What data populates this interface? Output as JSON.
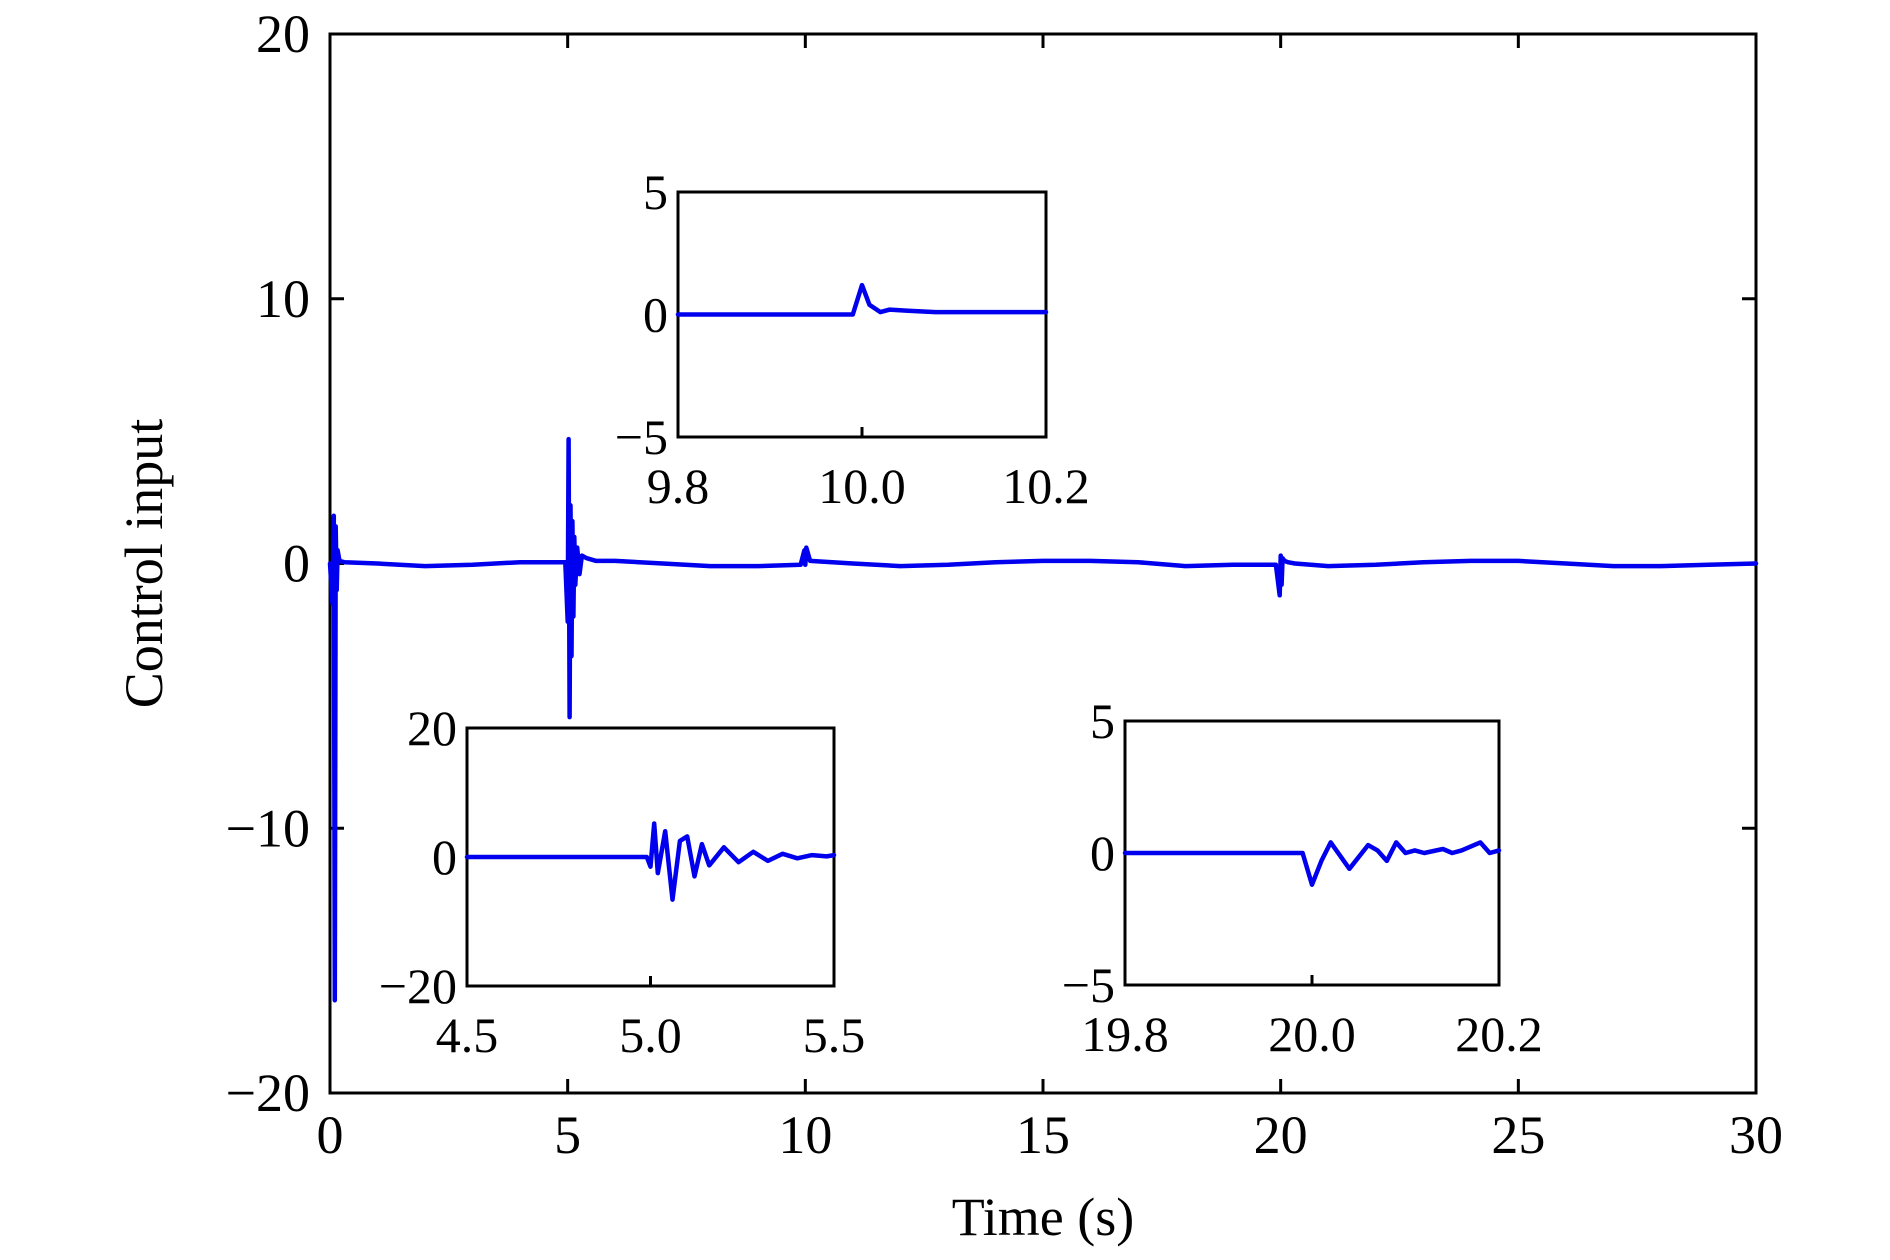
{
  "chart_data": {
    "type": "line",
    "xlabel": "Time (s)",
    "ylabel": "Control input",
    "xlim": [
      0,
      30
    ],
    "ylim": [
      -20,
      20
    ],
    "xticks": [
      "0",
      "5",
      "10",
      "15",
      "20",
      "25",
      "30"
    ],
    "yticks": [
      "−20",
      "−10",
      "0",
      "10",
      "20"
    ],
    "grid": true,
    "color": "#0000ee",
    "series": [
      {
        "x": [
          0,
          0.05,
          0.08,
          0.1,
          0.12,
          0.14,
          0.16,
          0.2,
          0.3,
          1.0,
          2.0,
          3.0,
          4.0,
          4.95,
          5.0,
          5.02,
          5.04,
          5.06,
          5.08,
          5.1,
          5.12,
          5.14,
          5.16,
          5.2,
          5.25,
          5.3,
          5.4,
          5.6,
          6.0,
          7.0,
          8.0,
          9.0,
          9.9,
          9.98,
          10.0,
          10.02,
          10.1,
          11.0,
          12.0,
          13.0,
          14.0,
          15.0,
          16.0,
          17.0,
          18.0,
          19.0,
          19.9,
          19.98,
          20.0,
          20.02,
          20.04,
          20.08,
          20.15,
          20.3,
          21.0,
          22.0,
          23.0,
          24.0,
          25.0,
          26.0,
          27.0,
          28.0,
          29.0,
          30.0
        ],
        "y": [
          0,
          -1.5,
          1.8,
          -16.5,
          1.4,
          -1.0,
          0.5,
          0.1,
          0.05,
          0.0,
          -0.1,
          -0.05,
          0.05,
          0.05,
          -2.2,
          4.7,
          -5.8,
          2.2,
          -3.5,
          1.6,
          -2.0,
          1.0,
          -0.8,
          0.6,
          -0.4,
          0.3,
          0.2,
          0.1,
          0.1,
          0.0,
          -0.1,
          -0.1,
          -0.05,
          0.5,
          -0.05,
          0.6,
          0.1,
          0.0,
          -0.1,
          -0.05,
          0.05,
          0.1,
          0.1,
          0.05,
          -0.1,
          -0.05,
          -0.05,
          -1.2,
          0.3,
          -0.8,
          0.2,
          0.1,
          0.05,
          0.0,
          -0.1,
          -0.05,
          0.05,
          0.1,
          0.1,
          0.0,
          -0.1,
          -0.1,
          -0.05,
          0.0
        ]
      }
    ],
    "insets": [
      {
        "xlim": [
          9.8,
          10.2
        ],
        "ylim": [
          -5,
          5
        ],
        "xticks": [
          "9.8",
          "10.0",
          "10.2"
        ],
        "yticks": [
          "−5",
          "0",
          "5"
        ],
        "x": [
          9.8,
          9.99,
          10.0,
          10.008,
          10.02,
          10.03,
          10.05,
          10.08,
          10.12,
          10.2
        ],
        "y": [
          0,
          0,
          1.2,
          0.4,
          0.1,
          0.2,
          0.15,
          0.1,
          0.1,
          0.1
        ]
      },
      {
        "xlim": [
          4.5,
          5.5
        ],
        "ylim": [
          -20,
          20
        ],
        "xticks": [
          "4.5",
          "5.0",
          "5.5"
        ],
        "yticks": [
          "−20",
          "0",
          "20"
        ],
        "x": [
          4.5,
          4.99,
          5.0,
          5.01,
          5.02,
          5.04,
          5.06,
          5.08,
          5.1,
          5.12,
          5.14,
          5.16,
          5.2,
          5.24,
          5.28,
          5.32,
          5.36,
          5.4,
          5.44,
          5.48,
          5.5
        ],
        "y": [
          0,
          0,
          -1.5,
          5.2,
          -2.5,
          4.0,
          -6.6,
          2.5,
          3.2,
          -3.0,
          2.0,
          -1.3,
          1.5,
          -0.8,
          0.8,
          -0.6,
          0.5,
          -0.2,
          0.3,
          0.1,
          0.3
        ]
      },
      {
        "xlim": [
          19.8,
          20.2
        ],
        "ylim": [
          -5,
          5
        ],
        "xticks": [
          "19.8",
          "20.0",
          "20.2"
        ],
        "yticks": [
          "−5",
          "0",
          "5"
        ],
        "x": [
          19.8,
          19.99,
          20.0,
          20.01,
          20.02,
          20.04,
          20.06,
          20.07,
          20.08,
          20.09,
          20.1,
          20.11,
          20.12,
          20.14,
          20.15,
          20.16,
          20.18,
          20.19,
          20.2
        ],
        "y": [
          0,
          0,
          -1.2,
          -0.3,
          0.4,
          -0.6,
          0.3,
          0.1,
          -0.3,
          0.4,
          0.0,
          0.1,
          0.0,
          0.15,
          0.0,
          0.1,
          0.4,
          0.0,
          0.1
        ]
      }
    ]
  }
}
